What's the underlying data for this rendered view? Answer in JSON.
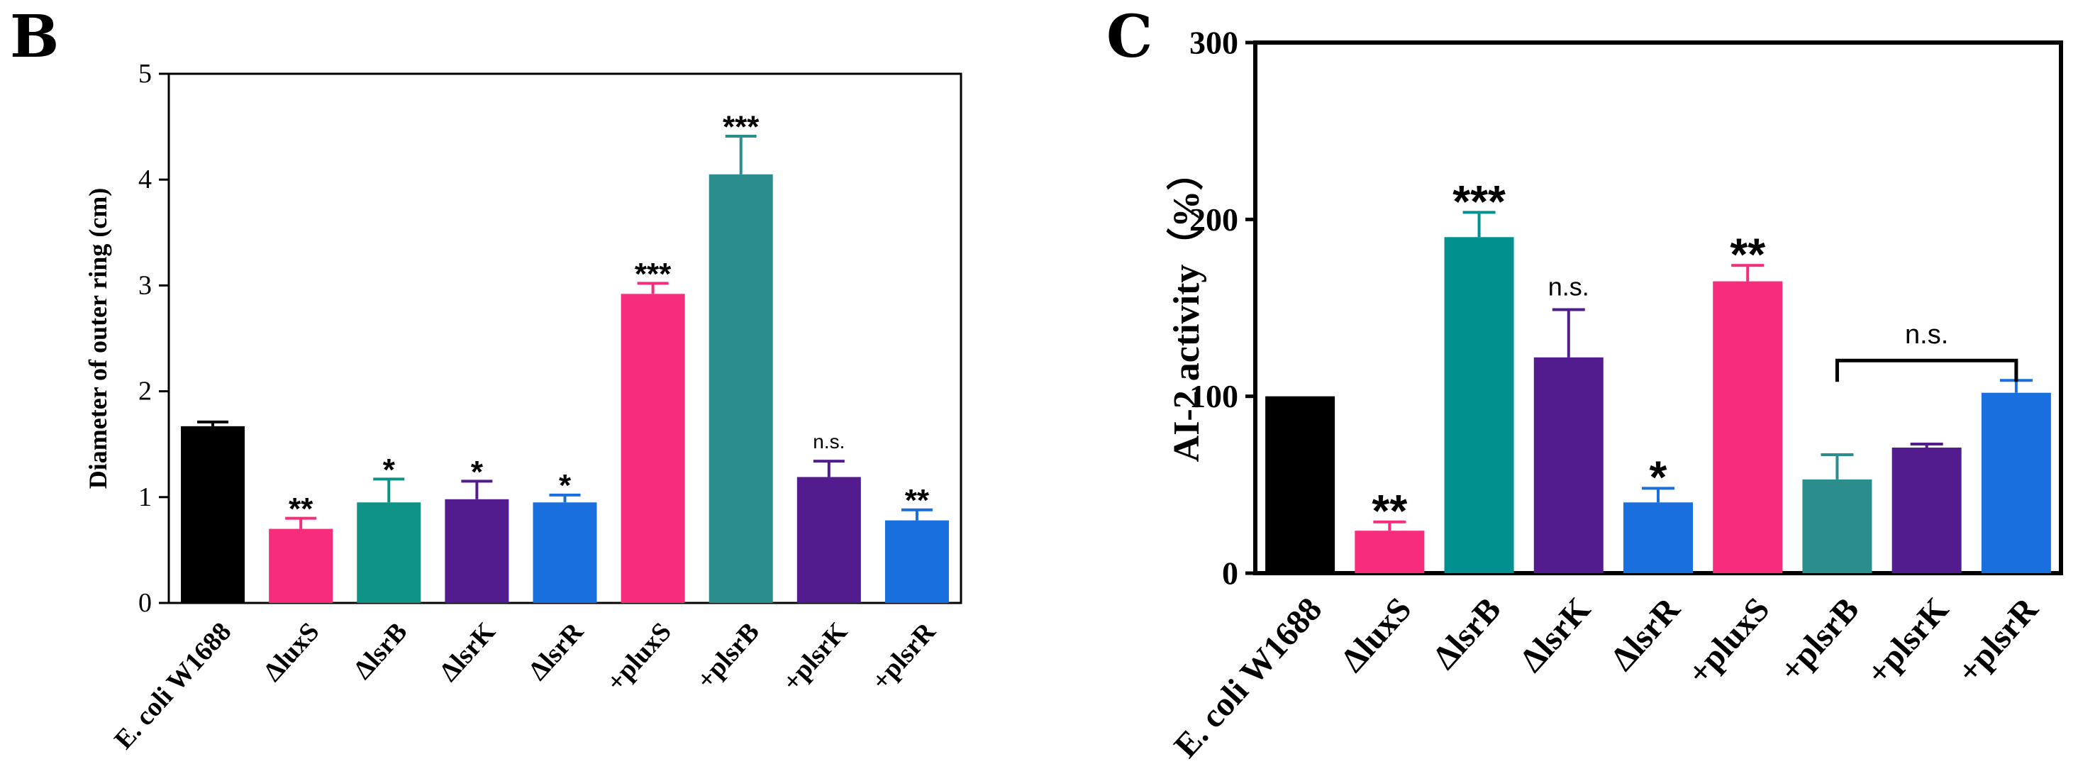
{
  "chart_data": [
    {
      "panel": "B",
      "type": "bar",
      "title": "",
      "xlabel": "",
      "ylabel": "Diameter of outer ring (cm)",
      "ylim": [
        0,
        5
      ],
      "yticks": [
        0,
        1,
        2,
        3,
        4,
        5
      ],
      "categories": [
        "E. coli W1688",
        "ΔluxS",
        "ΔlsrB",
        "ΔlsrK",
        "ΔlsrR",
        "+pluxS",
        "+plsrB",
        "+plsrK",
        "+plsrR"
      ],
      "values": [
        1.67,
        0.7,
        0.95,
        0.98,
        0.95,
        2.92,
        4.05,
        1.19,
        0.78
      ],
      "errors": [
        0.04,
        0.1,
        0.22,
        0.17,
        0.07,
        0.1,
        0.36,
        0.15,
        0.1
      ],
      "significance": [
        "",
        "**",
        "*",
        "*",
        "*",
        "***",
        "***",
        "n.s.",
        "**"
      ],
      "colors": [
        "#000000",
        "#f72c7a",
        "#0e9285",
        "#521c8e",
        "#1a6fde",
        "#f72c7a",
        "#2b8d8c",
        "#521c8e",
        "#1a6fde"
      ]
    },
    {
      "panel": "C",
      "type": "bar",
      "title": "",
      "xlabel": "",
      "ylabel": "AI-2 activity（%）",
      "ylim": [
        0,
        300
      ],
      "yticks": [
        0,
        100,
        200,
        300
      ],
      "categories": [
        "E. coli W1688",
        "ΔluxS",
        "ΔlsrB",
        "ΔlsrK",
        "ΔlsrR",
        "+pluxS",
        "+plsrB",
        "+plsrK",
        "+plsrR"
      ],
      "values": [
        100,
        24,
        190,
        122,
        40,
        165,
        53,
        71,
        102
      ],
      "errors": [
        0,
        5,
        14,
        27,
        8,
        9,
        14,
        2,
        7
      ],
      "significance": [
        "",
        "**",
        "***",
        "n.s.",
        "*",
        "**",
        "",
        "",
        ""
      ],
      "bracket": {
        "from": 6,
        "to": 8,
        "label": "n.s."
      },
      "colors": [
        "#000000",
        "#f72c7a",
        "#009090",
        "#521c8e",
        "#1a6fde",
        "#f72c7a",
        "#2b8d8c",
        "#521c8e",
        "#1a6fde"
      ]
    }
  ]
}
